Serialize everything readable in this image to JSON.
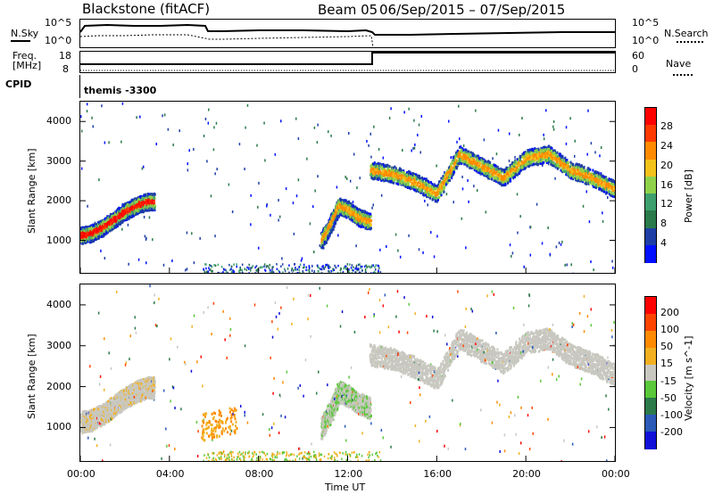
{
  "header": {
    "station": "Blackstone (fitACF)",
    "beam": "Beam 05",
    "dates": "06/Sep/2015 – 07/Sep/2015"
  },
  "panels": {
    "nsky_label": "N.Sky",
    "nsearch_label": "N.Search",
    "freq_label": "Freq.",
    "freq_unit": "[MHz]",
    "nave_label": "Nave",
    "cpid_label": "CPID",
    "cpid_value": "themis -3300",
    "nsky_ticks_left": [
      "10^5",
      "10^0"
    ],
    "nsky_ticks_right": [
      "10^5",
      "10^0"
    ],
    "freq_ticks_left": [
      "18",
      "8"
    ],
    "freq_ticks_right": [
      "60",
      "0"
    ]
  },
  "colors": {
    "power": [
      "#0010ff",
      "#1e3ea6",
      "#2a7a4a",
      "#3ea06e",
      "#8fd24a",
      "#f2c21a",
      "#ff8a00",
      "#ff3a00",
      "#ff0000"
    ],
    "velocity": [
      "#1010d8",
      "#2a5ab8",
      "#2c7a4a",
      "#5ac83a",
      "#c8c8c0",
      "#f2b020",
      "#ff8a00",
      "#ff4400",
      "#ff0000"
    ]
  },
  "chart_data": [
    {
      "type": "heatmap",
      "title": "Power",
      "xlabel": "",
      "ylabel": "Slant Range [km]",
      "x_range_hours": [
        0,
        24
      ],
      "x_ticks": [
        "00:00",
        "04:00",
        "08:00",
        "12:00",
        "16:00",
        "20:00",
        "00:00"
      ],
      "ylim": [
        180,
        4500
      ],
      "y_ticks": [
        1000,
        2000,
        3000,
        4000
      ],
      "colorbar": {
        "label": "Power [dB]",
        "ticks": [
          "28",
          "24",
          "20",
          "16",
          "12",
          "8",
          "4"
        ],
        "range": [
          0,
          30
        ]
      },
      "features": [
        {
          "x_hours": [
            0,
            0.5,
            1,
            1.5,
            2,
            2.5,
            3,
            3.3
          ],
          "y_km": [
            1150,
            1200,
            1350,
            1550,
            1750,
            1900,
            2000,
            2000
          ],
          "value_db": 26
        },
        {
          "x_hours": [
            10.8,
            11.2,
            11.6,
            12.0,
            12.5,
            13.0
          ],
          "y_km": [
            1000,
            1400,
            1900,
            1800,
            1600,
            1500
          ],
          "value_db": 22
        },
        {
          "x_hours": [
            13.0,
            14.0,
            15.0,
            16.0,
            17.0,
            18.0,
            19.0,
            20.0,
            21.0,
            22.0,
            23.0,
            24.0
          ],
          "y_km": [
            2800,
            2700,
            2500,
            2200,
            3200,
            2900,
            2600,
            3100,
            3200,
            2800,
            2600,
            2300
          ],
          "value_db": 18
        }
      ]
    },
    {
      "type": "heatmap",
      "title": "Velocity",
      "xlabel": "Time UT",
      "ylabel": "Slant Range [km]",
      "x_range_hours": [
        0,
        24
      ],
      "x_ticks": [
        "00:00",
        "04:00",
        "08:00",
        "12:00",
        "16:00",
        "20:00",
        "00:00"
      ],
      "ylim": [
        180,
        4500
      ],
      "y_ticks": [
        1000,
        2000,
        3000,
        4000
      ],
      "colorbar": {
        "label": "Velocity [m s^-1]",
        "ticks": [
          "200",
          "100",
          "50",
          "15",
          "-15",
          "-50",
          "-100",
          "-200"
        ],
        "range": [
          -250,
          250
        ]
      }
    }
  ]
}
